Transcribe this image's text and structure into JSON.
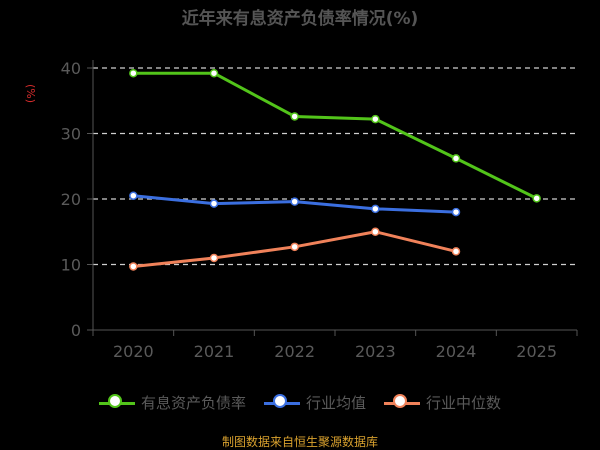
{
  "chart_data": {
    "type": "line",
    "title": "近年来有息资产负债率情况(%)",
    "ylabel": "(%)",
    "categories": [
      "2020",
      "2021",
      "2022",
      "2023",
      "2024",
      "2025"
    ],
    "ylim": [
      0,
      40
    ],
    "yticks": [
      0,
      10,
      20,
      30,
      40
    ],
    "grid": true,
    "legend_position": "bottom",
    "series": [
      {
        "name": "有息资产负债率",
        "color": "#52c41a",
        "values": [
          39.2,
          39.2,
          32.6,
          32.2,
          26.2,
          20.1
        ]
      },
      {
        "name": "行业均值",
        "color": "#3b6fe0",
        "values": [
          20.5,
          19.3,
          19.6,
          18.5,
          18.0,
          null
        ]
      },
      {
        "name": "行业中位数",
        "color": "#f0825a",
        "values": [
          9.7,
          11.0,
          12.7,
          15.0,
          12.0,
          null
        ]
      }
    ]
  },
  "footer": {
    "source": "制图数据来自恒生聚源数据库"
  }
}
